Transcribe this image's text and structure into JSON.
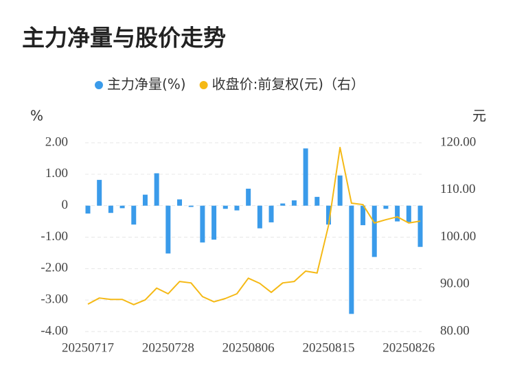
{
  "chart_data": {
    "type": "bar_line",
    "title": "主力净量与股价走势",
    "y_label": "%",
    "y2_label": "元",
    "categories": [
      "20250717",
      null,
      null,
      null,
      null,
      null,
      null,
      "20250728",
      null,
      null,
      null,
      null,
      null,
      null,
      "20250806",
      null,
      null,
      null,
      null,
      null,
      null,
      "20250815",
      null,
      null,
      null,
      null,
      null,
      null,
      "20250826",
      null
    ],
    "series": [
      {
        "name": "主力净量(%)",
        "type": "bar",
        "color": "#3a9bea",
        "values": [
          -0.25,
          0.82,
          -0.23,
          -0.08,
          -0.6,
          0.35,
          1.03,
          -1.52,
          0.2,
          -0.04,
          -1.17,
          -1.08,
          -0.1,
          -0.15,
          0.54,
          -0.72,
          -0.53,
          0.07,
          0.17,
          1.82,
          0.28,
          -0.6,
          0.96,
          -3.44,
          -0.62,
          -1.63,
          -0.1,
          -0.5,
          -0.52,
          -1.31
        ]
      },
      {
        "name": "收盘价:前复权(元)（右）",
        "type": "line",
        "axis": "y2",
        "color": "#f5b915",
        "values": [
          85.8,
          87.1,
          86.8,
          86.8,
          85.7,
          86.7,
          89.2,
          88.0,
          90.6,
          90.3,
          87.4,
          86.3,
          87.0,
          88.0,
          91.3,
          90.2,
          88.3,
          90.3,
          90.6,
          92.8,
          92.4,
          102.5,
          119.0,
          107.2,
          106.9,
          103.0,
          103.7,
          104.3,
          103.0,
          103.4
        ]
      }
    ],
    "ylim": [
      -4,
      2
    ],
    "yticks": [
      {
        "value": 2,
        "label": "2.00"
      },
      {
        "value": 1,
        "label": "1.00"
      },
      0,
      {
        "value": -1,
        "label": "-1.00"
      },
      {
        "value": -2,
        "label": "-2.00"
      },
      {
        "value": -3,
        "label": "-3.00"
      },
      {
        "value": -4,
        "label": "-4.00"
      }
    ],
    "y2lim": [
      80,
      120
    ],
    "y2ticks": [
      {
        "value": 120,
        "label": "120.00"
      },
      {
        "value": 110,
        "label": "110.00"
      },
      {
        "value": 100,
        "label": "100.00"
      },
      {
        "value": 90,
        "label": "90.00"
      },
      {
        "value": 80,
        "label": "80.00"
      }
    ],
    "grid": true,
    "legend": "top"
  }
}
